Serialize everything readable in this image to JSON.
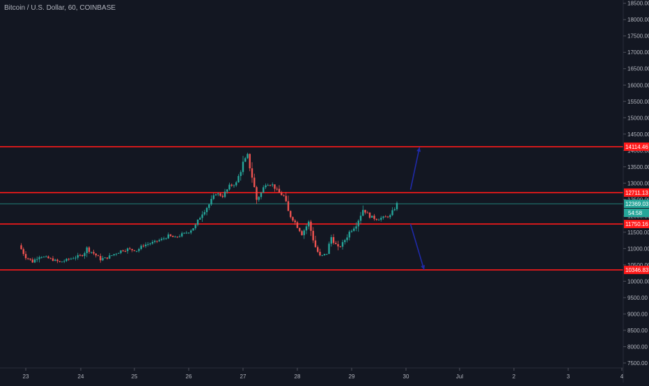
{
  "header": {
    "symbol_title": "Bitcoin / U.S. Dollar, 60, COINBASE"
  },
  "colors": {
    "background": "#131722",
    "axis_text": "#b2b5be",
    "bull": "#26a69a",
    "bear": "#ef5350",
    "level_line": "#ff1a1a",
    "last_price_line": "#26a69a",
    "arrow": "#1f2aa8"
  },
  "chart_data": {
    "type": "candlestick",
    "title": "Bitcoin / U.S. Dollar, 60, COINBASE",
    "ylim": [
      7350,
      18600
    ],
    "y_ticks": [
      "18500.00",
      "18000.00",
      "17500.00",
      "17000.00",
      "16500.00",
      "16000.00",
      "15500.00",
      "15000.00",
      "14500.00",
      "14000.00",
      "13500.00",
      "13000.00",
      "12500.00",
      "12000.00",
      "11500.00",
      "11000.00",
      "10500.00",
      "10000.00",
      "9500.00",
      "9000.00",
      "8500.00",
      "8000.00",
      "7500.00"
    ],
    "x_ticks": [
      "23",
      "24",
      "25",
      "26",
      "27",
      "28",
      "29",
      "30",
      "Jul",
      "2",
      "3",
      "4"
    ],
    "levels": [
      {
        "price": 14114.46,
        "label": "14114.46"
      },
      {
        "price": 12711.13,
        "label": "12711.13"
      },
      {
        "price": 11750.16,
        "label": "11750.16"
      },
      {
        "price": 10346.83,
        "label": "10346.83"
      }
    ],
    "last_price": {
      "price": 12369.03,
      "label": "12369.03",
      "countdown": "54:58"
    },
    "price_path": [
      [
        "22 21:00",
        11100
      ],
      [
        "23 00:00",
        10750
      ],
      [
        "23 03:00",
        10600
      ],
      [
        "23 06:00",
        10780
      ],
      [
        "23 09:00",
        10720
      ],
      [
        "23 12:00",
        10660
      ],
      [
        "23 15:00",
        10580
      ],
      [
        "23 18:00",
        10650
      ],
      [
        "23 21:00",
        10720
      ],
      [
        "24 01:00",
        10800
      ],
      [
        "24 03:00",
        11000
      ],
      [
        "24 06:00",
        10850
      ],
      [
        "24 09:00",
        10680
      ],
      [
        "24 12:00",
        10720
      ],
      [
        "24 15:00",
        10830
      ],
      [
        "24 18:00",
        10930
      ],
      [
        "24 21:00",
        10980
      ],
      [
        "25 01:00",
        10940
      ],
      [
        "25 04:00",
        11100
      ],
      [
        "25 08:00",
        11180
      ],
      [
        "25 12:00",
        11280
      ],
      [
        "25 15:00",
        11380
      ],
      [
        "25 18:00",
        11330
      ],
      [
        "25 21:00",
        11430
      ],
      [
        "26 00:00",
        11520
      ],
      [
        "26 03:00",
        11700
      ],
      [
        "26 06:00",
        12100
      ],
      [
        "26 09:00",
        12350
      ],
      [
        "26 12:00",
        12700
      ],
      [
        "26 15:00",
        12600
      ],
      [
        "26 18:00",
        12900
      ],
      [
        "26 21:00",
        13000
      ],
      [
        "27 00:00",
        13600
      ],
      [
        "27 02:00",
        13850
      ],
      [
        "27 04:00",
        13200
      ],
      [
        "27 06:00",
        12500
      ],
      [
        "27 08:00",
        12700
      ],
      [
        "27 10:00",
        13000
      ],
      [
        "27 13:00",
        12950
      ],
      [
        "27 16:00",
        12700
      ],
      [
        "27 18:00",
        12600
      ],
      [
        "27 20:00",
        12100
      ],
      [
        "27 23:00",
        11800
      ],
      [
        "28 02:00",
        11450
      ],
      [
        "28 05:00",
        11800
      ],
      [
        "28 08:00",
        11050
      ],
      [
        "28 10:00",
        10750
      ],
      [
        "28 13:00",
        10850
      ],
      [
        "28 15:00",
        11350
      ],
      [
        "28 18:00",
        11000
      ],
      [
        "28 20:00",
        11150
      ],
      [
        "28 23:00",
        11500
      ],
      [
        "29 02:00",
        11750
      ],
      [
        "29 05:00",
        12200
      ],
      [
        "29 08:00",
        12000
      ],
      [
        "29 11:00",
        11900
      ],
      [
        "29 14:00",
        11950
      ],
      [
        "29 17:00",
        12000
      ],
      [
        "29 20:00",
        12350
      ]
    ],
    "forecast_arrows": [
      {
        "from": [
          "30 02:00",
          12800
        ],
        "to": [
          "30 06:00",
          14100
        ]
      },
      {
        "from": [
          "30 02:00",
          11750
        ],
        "to": [
          "30 08:00",
          10350
        ]
      }
    ]
  }
}
